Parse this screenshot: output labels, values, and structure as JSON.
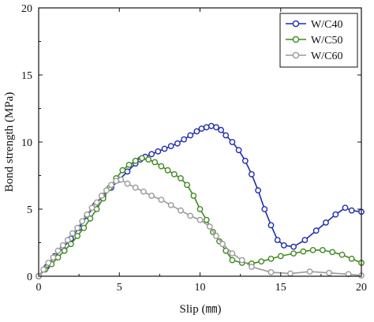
{
  "chart_data": {
    "type": "line",
    "xlabel": "Slip (㎜)",
    "ylabel": "Bond strength (MPa)",
    "xlim": [
      0,
      20
    ],
    "ylim": [
      0,
      20
    ],
    "xticks": [
      0,
      5,
      10,
      15,
      20
    ],
    "yticks": [
      0,
      5,
      10,
      15,
      20
    ],
    "grid": false,
    "legend_position": "top-right",
    "series": [
      {
        "name": "W/C40",
        "color": "#1f2bb0",
        "marker": "open-circle",
        "points": [
          [
            0,
            0
          ],
          [
            0.5,
            0.7
          ],
          [
            1.0,
            1.5
          ],
          [
            1.5,
            2.1
          ],
          [
            2.0,
            2.8
          ],
          [
            2.5,
            3.6
          ],
          [
            3.0,
            4.5
          ],
          [
            3.5,
            5.3
          ],
          [
            4.0,
            6.0
          ],
          [
            4.5,
            6.6
          ],
          [
            5.0,
            7.2
          ],
          [
            5.5,
            7.8
          ],
          [
            6.0,
            8.4
          ],
          [
            6.3,
            8.7
          ],
          [
            6.6,
            8.9
          ],
          [
            7.0,
            9.1
          ],
          [
            7.4,
            9.3
          ],
          [
            7.8,
            9.5
          ],
          [
            8.2,
            9.7
          ],
          [
            8.6,
            9.9
          ],
          [
            9.0,
            10.2
          ],
          [
            9.4,
            10.5
          ],
          [
            9.8,
            10.8
          ],
          [
            10.1,
            11.0
          ],
          [
            10.4,
            11.1
          ],
          [
            10.7,
            11.2
          ],
          [
            11.0,
            11.1
          ],
          [
            11.3,
            10.9
          ],
          [
            11.6,
            10.5
          ],
          [
            12.0,
            10.0
          ],
          [
            12.4,
            9.4
          ],
          [
            12.8,
            8.6
          ],
          [
            13.2,
            7.6
          ],
          [
            13.6,
            6.4
          ],
          [
            14.0,
            5.0
          ],
          [
            14.4,
            3.8
          ],
          [
            14.8,
            2.7
          ],
          [
            15.2,
            2.3
          ],
          [
            15.8,
            2.2
          ],
          [
            16.5,
            2.7
          ],
          [
            17.2,
            3.4
          ],
          [
            17.8,
            4.0
          ],
          [
            18.4,
            4.6
          ],
          [
            19.0,
            5.1
          ],
          [
            19.4,
            4.9
          ],
          [
            20.0,
            4.8
          ]
        ]
      },
      {
        "name": "W/C50",
        "color": "#3f8a1f",
        "marker": "open-circle",
        "points": [
          [
            0,
            0
          ],
          [
            0.4,
            0.5
          ],
          [
            0.8,
            0.9
          ],
          [
            1.2,
            1.4
          ],
          [
            1.6,
            1.9
          ],
          [
            2.0,
            2.4
          ],
          [
            2.4,
            3.0
          ],
          [
            2.8,
            3.6
          ],
          [
            3.2,
            4.3
          ],
          [
            3.6,
            5.0
          ],
          [
            4.0,
            5.8
          ],
          [
            4.4,
            6.6
          ],
          [
            4.8,
            7.3
          ],
          [
            5.2,
            7.9
          ],
          [
            5.6,
            8.3
          ],
          [
            6.0,
            8.6
          ],
          [
            6.4,
            8.8
          ],
          [
            6.8,
            8.7
          ],
          [
            7.2,
            8.5
          ],
          [
            7.6,
            8.2
          ],
          [
            8.0,
            7.9
          ],
          [
            8.4,
            7.6
          ],
          [
            8.8,
            7.3
          ],
          [
            9.2,
            6.8
          ],
          [
            9.6,
            6.0
          ],
          [
            10.0,
            5.0
          ],
          [
            10.4,
            4.2
          ],
          [
            10.8,
            3.3
          ],
          [
            11.2,
            2.6
          ],
          [
            11.6,
            1.9
          ],
          [
            12.0,
            1.2
          ],
          [
            12.6,
            1.0
          ],
          [
            13.2,
            0.95
          ],
          [
            13.8,
            1.1
          ],
          [
            14.4,
            1.3
          ],
          [
            15.0,
            1.5
          ],
          [
            15.8,
            1.7
          ],
          [
            16.4,
            1.85
          ],
          [
            17.0,
            1.95
          ],
          [
            17.6,
            1.95
          ],
          [
            18.2,
            1.8
          ],
          [
            18.8,
            1.6
          ],
          [
            19.4,
            1.3
          ],
          [
            20.0,
            1.0
          ]
        ]
      },
      {
        "name": "W/C60",
        "color": "#9a9a9a",
        "marker": "open-circle",
        "points": [
          [
            0,
            0
          ],
          [
            0.3,
            0.5
          ],
          [
            0.6,
            1.0
          ],
          [
            0.9,
            1.4
          ],
          [
            1.2,
            1.9
          ],
          [
            1.5,
            2.3
          ],
          [
            1.8,
            2.7
          ],
          [
            2.1,
            3.2
          ],
          [
            2.4,
            3.6
          ],
          [
            2.7,
            4.1
          ],
          [
            3.0,
            4.6
          ],
          [
            3.3,
            5.1
          ],
          [
            3.6,
            5.5
          ],
          [
            3.9,
            6.0
          ],
          [
            4.2,
            6.4
          ],
          [
            4.5,
            6.8
          ],
          [
            4.8,
            7.1
          ],
          [
            5.1,
            7.2
          ],
          [
            5.5,
            6.9
          ],
          [
            6.0,
            6.6
          ],
          [
            6.5,
            6.3
          ],
          [
            7.0,
            6.0
          ],
          [
            7.6,
            5.7
          ],
          [
            8.2,
            5.3
          ],
          [
            8.8,
            4.9
          ],
          [
            9.4,
            4.5
          ],
          [
            10.0,
            4.2
          ],
          [
            10.6,
            3.7
          ],
          [
            11.0,
            3.0
          ],
          [
            11.4,
            2.4
          ],
          [
            12.0,
            1.7
          ],
          [
            12.6,
            1.2
          ],
          [
            13.2,
            0.7
          ],
          [
            14.4,
            0.3
          ],
          [
            15.6,
            0.2
          ],
          [
            16.8,
            0.35
          ],
          [
            18.0,
            0.25
          ],
          [
            19.2,
            0.15
          ],
          [
            20.0,
            0.05
          ]
        ]
      }
    ]
  }
}
